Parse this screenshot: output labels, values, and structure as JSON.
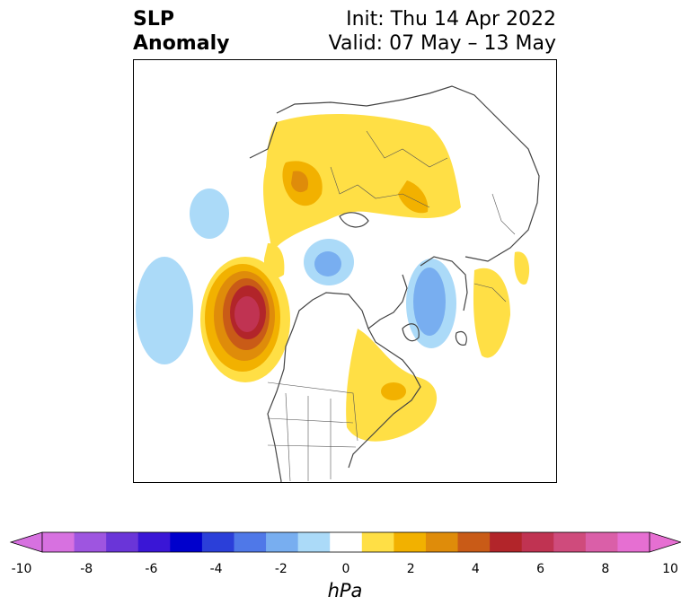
{
  "title": {
    "left_line1": "SLP",
    "left_line2": "Anomaly",
    "right_line1": "Init: Thu 14 Apr 2022",
    "right_line2": "Valid: 07 May – 13 May"
  },
  "colorbar": {
    "unit": "hPa",
    "ticks": [
      "-10",
      "-8",
      "-6",
      "-4",
      "-2",
      "0",
      "2",
      "4",
      "6",
      "8",
      "10"
    ],
    "levels": [
      -10,
      -9,
      -8,
      -7,
      -6,
      -5,
      -4,
      -3,
      -2,
      -1,
      1,
      2,
      3,
      4,
      5,
      6,
      7,
      8,
      9,
      10
    ],
    "colors": [
      "#d771e0",
      "#9e55e0",
      "#6a35d8",
      "#3a16d6",
      "#0000cc",
      "#2b3fd9",
      "#4f78e8",
      "#78aef0",
      "#abdaf8",
      "#ffffff",
      "#ffdf45",
      "#f2b100",
      "#df8c0a",
      "#c95b17",
      "#b2252a",
      "#c03352",
      "#cf4b7c",
      "#da5fa8",
      "#e66fd2"
    ],
    "extend_low": "#d771e0",
    "extend_high": "#e66fd2"
  },
  "map": {
    "projection": "north-polar-stereographic",
    "features": [
      {
        "name": "positive-anomaly-northeast-pacific",
        "peak_hpa": 7
      },
      {
        "name": "positive-anomaly-eurasia",
        "peak_hpa": 3
      },
      {
        "name": "positive-anomaly-eastern-north-america",
        "peak_hpa": 3
      },
      {
        "name": "negative-anomaly-western-pacific",
        "peak_hpa": -2
      },
      {
        "name": "negative-anomaly-north-atlantic",
        "peak_hpa": -3
      }
    ]
  }
}
